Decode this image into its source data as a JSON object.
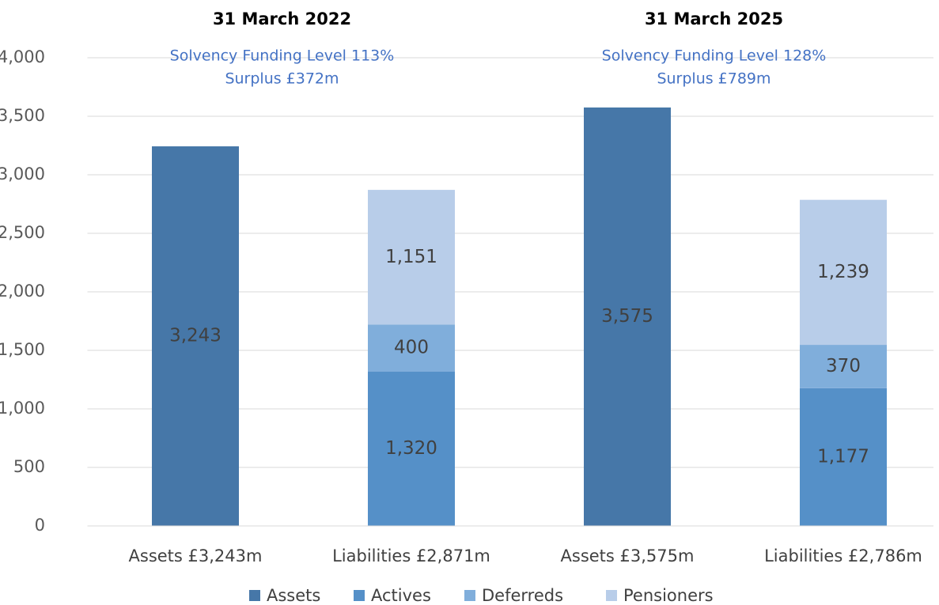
{
  "chart_data": {
    "type": "stacked_bar",
    "annotations": [
      {
        "heading": "31 March 2022",
        "lines": [
          "Solvency Funding Level 113%",
          "Surplus £372m"
        ]
      },
      {
        "heading": "31 March 2025",
        "lines": [
          "Solvency Funding Level 128%",
          "Surplus £789m"
        ]
      }
    ],
    "categories": [
      "Assets £3,243m",
      "Liabilities £2,871m",
      "Assets £3,575m",
      "Liabilities £2,786m"
    ],
    "series": [
      {
        "name": "Assets",
        "color": "#4677a8",
        "values": [
          3243,
          null,
          3575,
          null
        ],
        "value_labels": [
          "3,243",
          null,
          "3,575",
          null
        ]
      },
      {
        "name": "Actives",
        "color": "#5590c8",
        "values": [
          null,
          1320,
          null,
          1177
        ],
        "value_labels": [
          null,
          "1,320",
          null,
          "1,177"
        ]
      },
      {
        "name": "Deferreds",
        "color": "#80aedb",
        "values": [
          null,
          400,
          null,
          370
        ],
        "value_labels": [
          null,
          "400",
          null,
          "370"
        ]
      },
      {
        "name": "Pensioners",
        "color": "#b8cde9",
        "values": [
          null,
          1151,
          null,
          1239
        ],
        "value_labels": [
          null,
          "1,151",
          null,
          "1,239"
        ]
      }
    ],
    "ylim": [
      0,
      4000
    ],
    "yticks": [
      0,
      500,
      {
        "value": 1000,
        "label": "1,000"
      },
      {
        "value": 1500,
        "label": "1,500"
      },
      {
        "value": 2000,
        "label": "2,000"
      },
      {
        "value": 2500,
        "label": "2,500"
      },
      {
        "value": 3000,
        "label": "3,000"
      },
      {
        "value": 3500,
        "label": "3,500"
      },
      {
        "value": 4000,
        "label": "4,000"
      }
    ],
    "grid": true,
    "legend": "bottom"
  }
}
